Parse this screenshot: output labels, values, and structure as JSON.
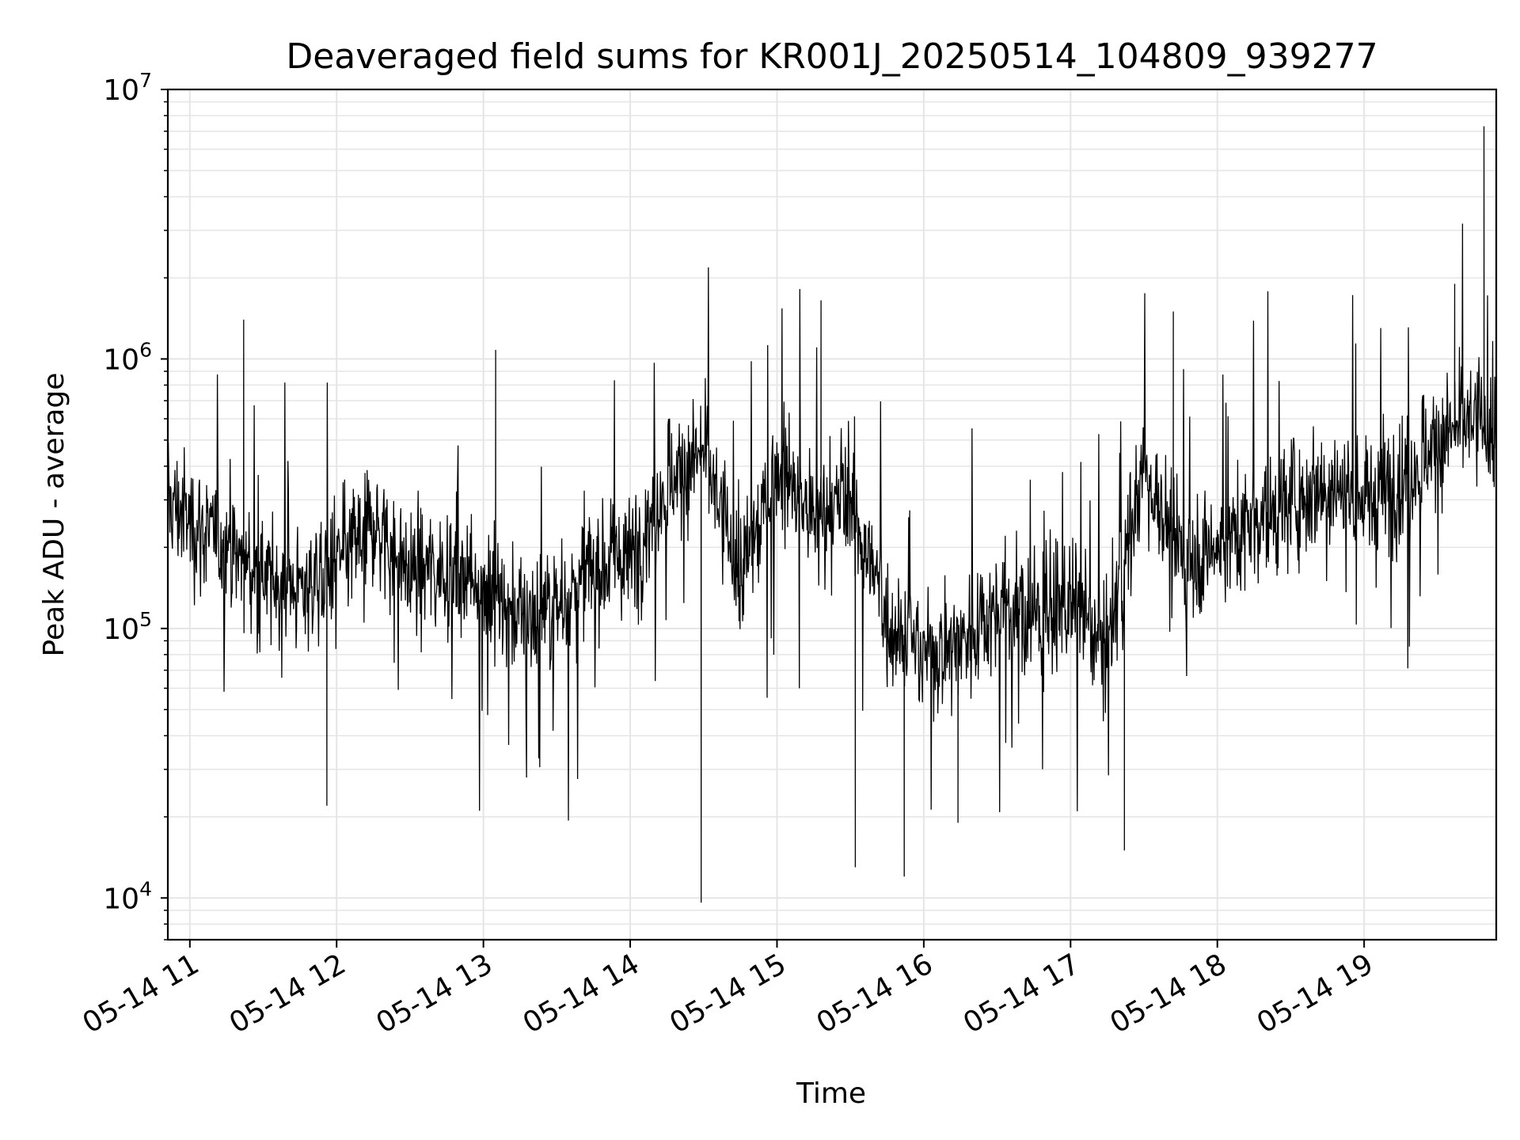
{
  "chart_data": {
    "type": "line",
    "title": "Deaveraged field sums for KR001J_20250514_104809_939277",
    "xlabel": "Time",
    "ylabel": "Peak ADU - average",
    "yscale": "log",
    "xlim": [
      "2025-05-14 10:51",
      "2025-05-14 19:54"
    ],
    "ylim": [
      7000,
      10000000
    ],
    "grid": true,
    "line_color": "#000000",
    "grid_color": "#e5e5e5",
    "x_ticks": [
      {
        "value": "2025-05-14 11:00",
        "label": "05-14 11"
      },
      {
        "value": "2025-05-14 12:00",
        "label": "05-14 12"
      },
      {
        "value": "2025-05-14 13:00",
        "label": "05-14 13"
      },
      {
        "value": "2025-05-14 14:00",
        "label": "05-14 14"
      },
      {
        "value": "2025-05-14 15:00",
        "label": "05-14 15"
      },
      {
        "value": "2025-05-14 16:00",
        "label": "05-14 16"
      },
      {
        "value": "2025-05-14 17:00",
        "label": "05-14 17"
      },
      {
        "value": "2025-05-14 18:00",
        "label": "05-14 18"
      },
      {
        "value": "2025-05-14 19:00",
        "label": "05-14 19"
      }
    ],
    "y_ticks": [
      {
        "value": 10000,
        "base": "10",
        "exp": "4"
      },
      {
        "value": 100000,
        "base": "10",
        "exp": "5"
      },
      {
        "value": 1000000,
        "base": "10",
        "exp": "6"
      },
      {
        "value": 10000000,
        "base": "10",
        "exp": "7"
      }
    ],
    "series": [
      {
        "x": [
          "2025-05-14 10:51",
          "2025-05-14 11:00",
          "2025-05-14 11:15",
          "2025-05-14 11:30",
          "2025-05-14 11:45",
          "2025-05-14 12:00",
          "2025-05-14 12:15",
          "2025-05-14 12:30",
          "2025-05-14 12:45",
          "2025-05-14 13:00",
          "2025-05-14 13:15",
          "2025-05-14 13:30",
          "2025-05-14 13:45",
          "2025-05-14 14:00",
          "2025-05-14 14:15",
          "2025-05-14 14:30",
          "2025-05-14 14:45",
          "2025-05-14 15:00",
          "2025-05-14 15:15",
          "2025-05-14 15:30",
          "2025-05-14 15:45",
          "2025-05-14 16:00",
          "2025-05-14 16:15",
          "2025-05-14 16:30",
          "2025-05-14 16:45",
          "2025-05-14 17:00",
          "2025-05-14 17:15",
          "2025-05-14 17:30",
          "2025-05-14 17:45",
          "2025-05-14 18:00",
          "2025-05-14 18:15",
          "2025-05-14 18:30",
          "2025-05-14 18:45",
          "2025-05-14 19:00",
          "2025-05-14 19:15",
          "2025-05-14 19:30",
          "2025-05-14 19:45",
          "2025-05-14 19:54"
        ],
        "y": [
          300000,
          250000,
          200000,
          150000,
          140000,
          170000,
          250000,
          160000,
          170000,
          150000,
          110000,
          120000,
          170000,
          180000,
          350000,
          450000,
          150000,
          400000,
          250000,
          300000,
          110000,
          80000,
          90000,
          120000,
          110000,
          120000,
          90000,
          400000,
          180000,
          200000,
          250000,
          300000,
          350000,
          300000,
          350000,
          500000,
          600000,
          500000
        ],
        "peaks": [
          {
            "x": "2025-05-14 11:22",
            "y": 1400000
          },
          {
            "x": "2025-05-14 11:56",
            "y": 22000
          },
          {
            "x": "2025-05-14 13:05",
            "y": 1080000
          },
          {
            "x": "2025-05-14 14:29",
            "y": 9600
          },
          {
            "x": "2025-05-14 15:18",
            "y": 1650000
          },
          {
            "x": "2025-05-14 15:32",
            "y": 13000
          },
          {
            "x": "2025-05-14 15:52",
            "y": 12000
          },
          {
            "x": "2025-05-14 16:14",
            "y": 19000
          },
          {
            "x": "2025-05-14 17:22",
            "y": 15000
          },
          {
            "x": "2025-05-14 17:42",
            "y": 1500000
          },
          {
            "x": "2025-05-14 19:37",
            "y": 1900000
          },
          {
            "x": "2025-05-14 19:49",
            "y": 7300000
          }
        ]
      }
    ]
  }
}
